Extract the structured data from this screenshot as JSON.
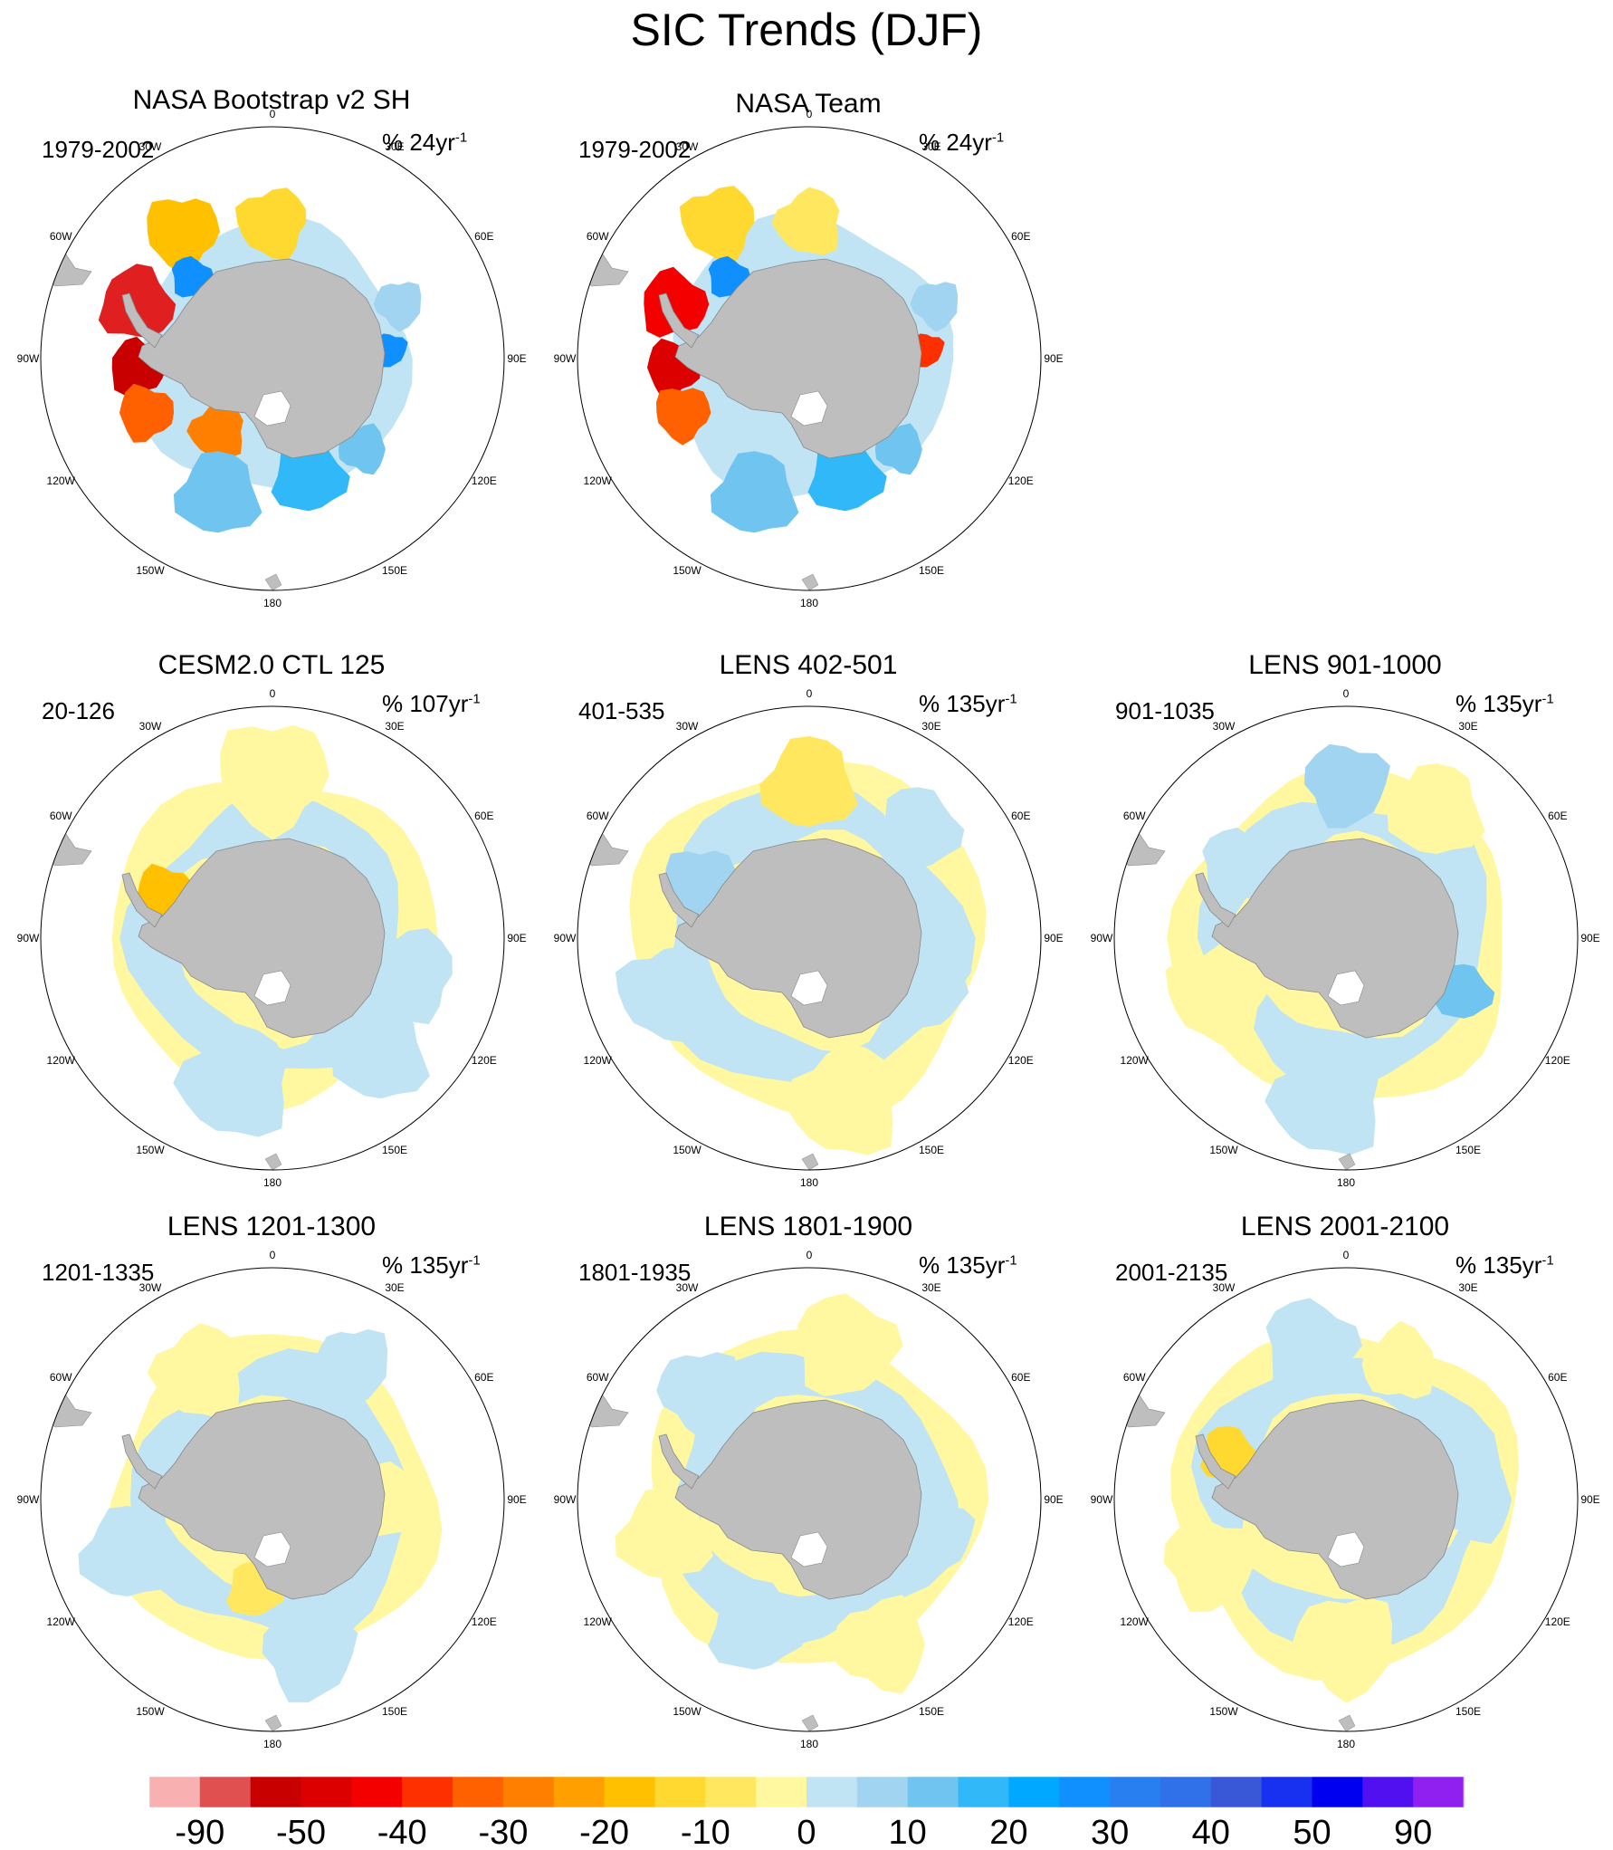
{
  "title": "SIC Trends (DJF)",
  "lon_labels": [
    "0",
    "30E",
    "60E",
    "90E",
    "120E",
    "150E",
    "180",
    "150W",
    "120W",
    "90W",
    "60W",
    "30W"
  ],
  "panels": [
    {
      "title": "NASA Bootstrap v2 SH",
      "period": "1979-2002",
      "unit": "% 24yr",
      "unit_sup": "-1",
      "style": "obs1"
    },
    {
      "title": "NASA Team",
      "period": "1979-2002",
      "unit": "% 24yr",
      "unit_sup": "-1",
      "style": "obs2"
    },
    {
      "title": "CESM2.0 CTL 125",
      "period": "20-126",
      "unit": "% 107yr",
      "unit_sup": "-1",
      "style": "m1"
    },
    {
      "title": "LENS 402-501",
      "period": "401-535",
      "unit": "% 135yr",
      "unit_sup": "-1",
      "style": "m2"
    },
    {
      "title": "LENS 901-1000",
      "period": "901-1035",
      "unit": "% 135yr",
      "unit_sup": "-1",
      "style": "m3"
    },
    {
      "title": "LENS 1201-1300",
      "period": "1201-1335",
      "unit": "% 135yr",
      "unit_sup": "-1",
      "style": "m4"
    },
    {
      "title": "LENS 1801-1900",
      "period": "1801-1935",
      "unit": "% 135yr",
      "unit_sup": "-1",
      "style": "m5"
    },
    {
      "title": "LENS 2001-2100",
      "period": "2001-2135",
      "unit": "% 135yr",
      "unit_sup": "-1",
      "style": "m6"
    }
  ],
  "colorbar": {
    "colors": [
      "#f9b0b0",
      "#e05050",
      "#c80000",
      "#dc0000",
      "#f50000",
      "#ff3000",
      "#ff6000",
      "#ff8000",
      "#ffa000",
      "#ffc000",
      "#ffd830",
      "#ffe860",
      "#fff8a0",
      "#c0e4f4",
      "#a0d4f0",
      "#70c4f0",
      "#30b8f8",
      "#00a8ff",
      "#1090ff",
      "#2880f0",
      "#3070e8",
      "#3858d8",
      "#1830f0",
      "#0000f0",
      "#5010f0",
      "#9020f0"
    ],
    "labels": [
      "-90",
      "-50",
      "-40",
      "-30",
      "-20",
      "-10",
      "0",
      "10",
      "20",
      "30",
      "40",
      "50",
      "90"
    ]
  },
  "colors": {
    "land": "#bebebe",
    "circle": "#000000",
    "yellow": "#fff8a0",
    "lightblue": "#c0e4f4"
  }
}
